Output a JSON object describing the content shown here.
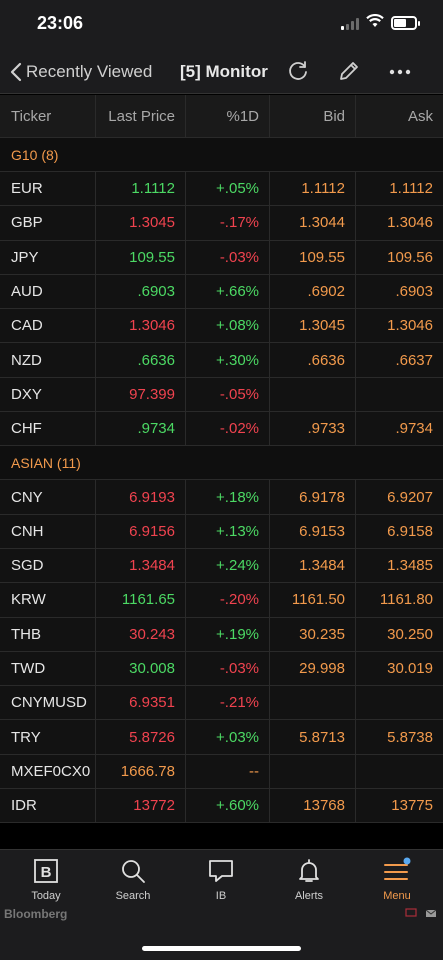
{
  "status_bar": {
    "time": "23:06"
  },
  "nav": {
    "back_label": "Recently Viewed",
    "title": "[5] Monitor"
  },
  "table": {
    "columns": [
      "Ticker",
      "Last Price",
      "%1D",
      "Bid",
      "Ask"
    ],
    "groups": [
      {
        "label": "G10 (8)",
        "rows": [
          {
            "ticker": "EUR",
            "last": "1.1112",
            "last_color": "green",
            "pct": "+.05%",
            "pct_color": "green",
            "bid": "1.1112",
            "ask": "1.1112"
          },
          {
            "ticker": "GBP",
            "last": "1.3045",
            "last_color": "red",
            "pct": "-.17%",
            "pct_color": "red",
            "bid": "1.3044",
            "ask": "1.3046"
          },
          {
            "ticker": "JPY",
            "last": "109.55",
            "last_color": "green",
            "pct": "-.03%",
            "pct_color": "red",
            "bid": "109.55",
            "ask": "109.56"
          },
          {
            "ticker": "AUD",
            "last": ".6903",
            "last_color": "green",
            "pct": "+.66%",
            "pct_color": "green",
            "bid": ".6902",
            "ask": ".6903"
          },
          {
            "ticker": "CAD",
            "last": "1.3046",
            "last_color": "red",
            "pct": "+.08%",
            "pct_color": "green",
            "bid": "1.3045",
            "ask": "1.3046"
          },
          {
            "ticker": "NZD",
            "last": ".6636",
            "last_color": "green",
            "pct": "+.30%",
            "pct_color": "green",
            "bid": ".6636",
            "ask": ".6637"
          },
          {
            "ticker": "DXY",
            "last": "97.399",
            "last_color": "red",
            "pct": "-.05%",
            "pct_color": "red",
            "bid": "",
            "ask": ""
          },
          {
            "ticker": "CHF",
            "last": ".9734",
            "last_color": "green",
            "pct": "-.02%",
            "pct_color": "red",
            "bid": ".9733",
            "ask": ".9734"
          }
        ]
      },
      {
        "label": "ASIAN (11)",
        "rows": [
          {
            "ticker": "CNY",
            "last": "6.9193",
            "last_color": "red",
            "pct": "+.18%",
            "pct_color": "green",
            "bid": "6.9178",
            "ask": "6.9207"
          },
          {
            "ticker": "CNH",
            "last": "6.9156",
            "last_color": "red",
            "pct": "+.13%",
            "pct_color": "green",
            "bid": "6.9153",
            "ask": "6.9158"
          },
          {
            "ticker": "SGD",
            "last": "1.3484",
            "last_color": "red",
            "pct": "+.24%",
            "pct_color": "green",
            "bid": "1.3484",
            "ask": "1.3485"
          },
          {
            "ticker": "KRW",
            "last": "1161.65",
            "last_color": "green",
            "pct": "-.20%",
            "pct_color": "red",
            "bid": "1161.50",
            "ask": "1161.80"
          },
          {
            "ticker": "THB",
            "last": "30.243",
            "last_color": "red",
            "pct": "+.19%",
            "pct_color": "green",
            "bid": "30.235",
            "ask": "30.250"
          },
          {
            "ticker": "TWD",
            "last": "30.008",
            "last_color": "green",
            "pct": "-.03%",
            "pct_color": "red",
            "bid": "29.998",
            "ask": "30.019"
          },
          {
            "ticker": "CNYMUSD",
            "last": "6.9351",
            "last_color": "red",
            "pct": "-.21%",
            "pct_color": "red",
            "bid": "",
            "ask": ""
          },
          {
            "ticker": "TRY",
            "last": "5.8726",
            "last_color": "red",
            "pct": "+.03%",
            "pct_color": "green",
            "bid": "5.8713",
            "ask": "5.8738"
          },
          {
            "ticker": "MXEF0CX0",
            "last": "1666.78",
            "last_color": "orange",
            "pct": "--",
            "pct_color": "orange",
            "bid": "",
            "ask": ""
          },
          {
            "ticker": "IDR",
            "last": "13772",
            "last_color": "red",
            "pct": "+.60%",
            "pct_color": "green",
            "bid": "13768",
            "ask": "13775"
          }
        ]
      }
    ]
  },
  "tabs": [
    {
      "label": "Today",
      "icon": "bloomberg-b-icon"
    },
    {
      "label": "Search",
      "icon": "search-icon"
    },
    {
      "label": "IB",
      "icon": "chat-icon"
    },
    {
      "label": "Alerts",
      "icon": "bell-icon"
    },
    {
      "label": "Menu",
      "icon": "menu-icon"
    }
  ],
  "brand": "Bloomberg",
  "colors": {
    "green": "#4cd964",
    "red": "#f0434f",
    "orange": "#f29a4c",
    "background": "#121212"
  }
}
